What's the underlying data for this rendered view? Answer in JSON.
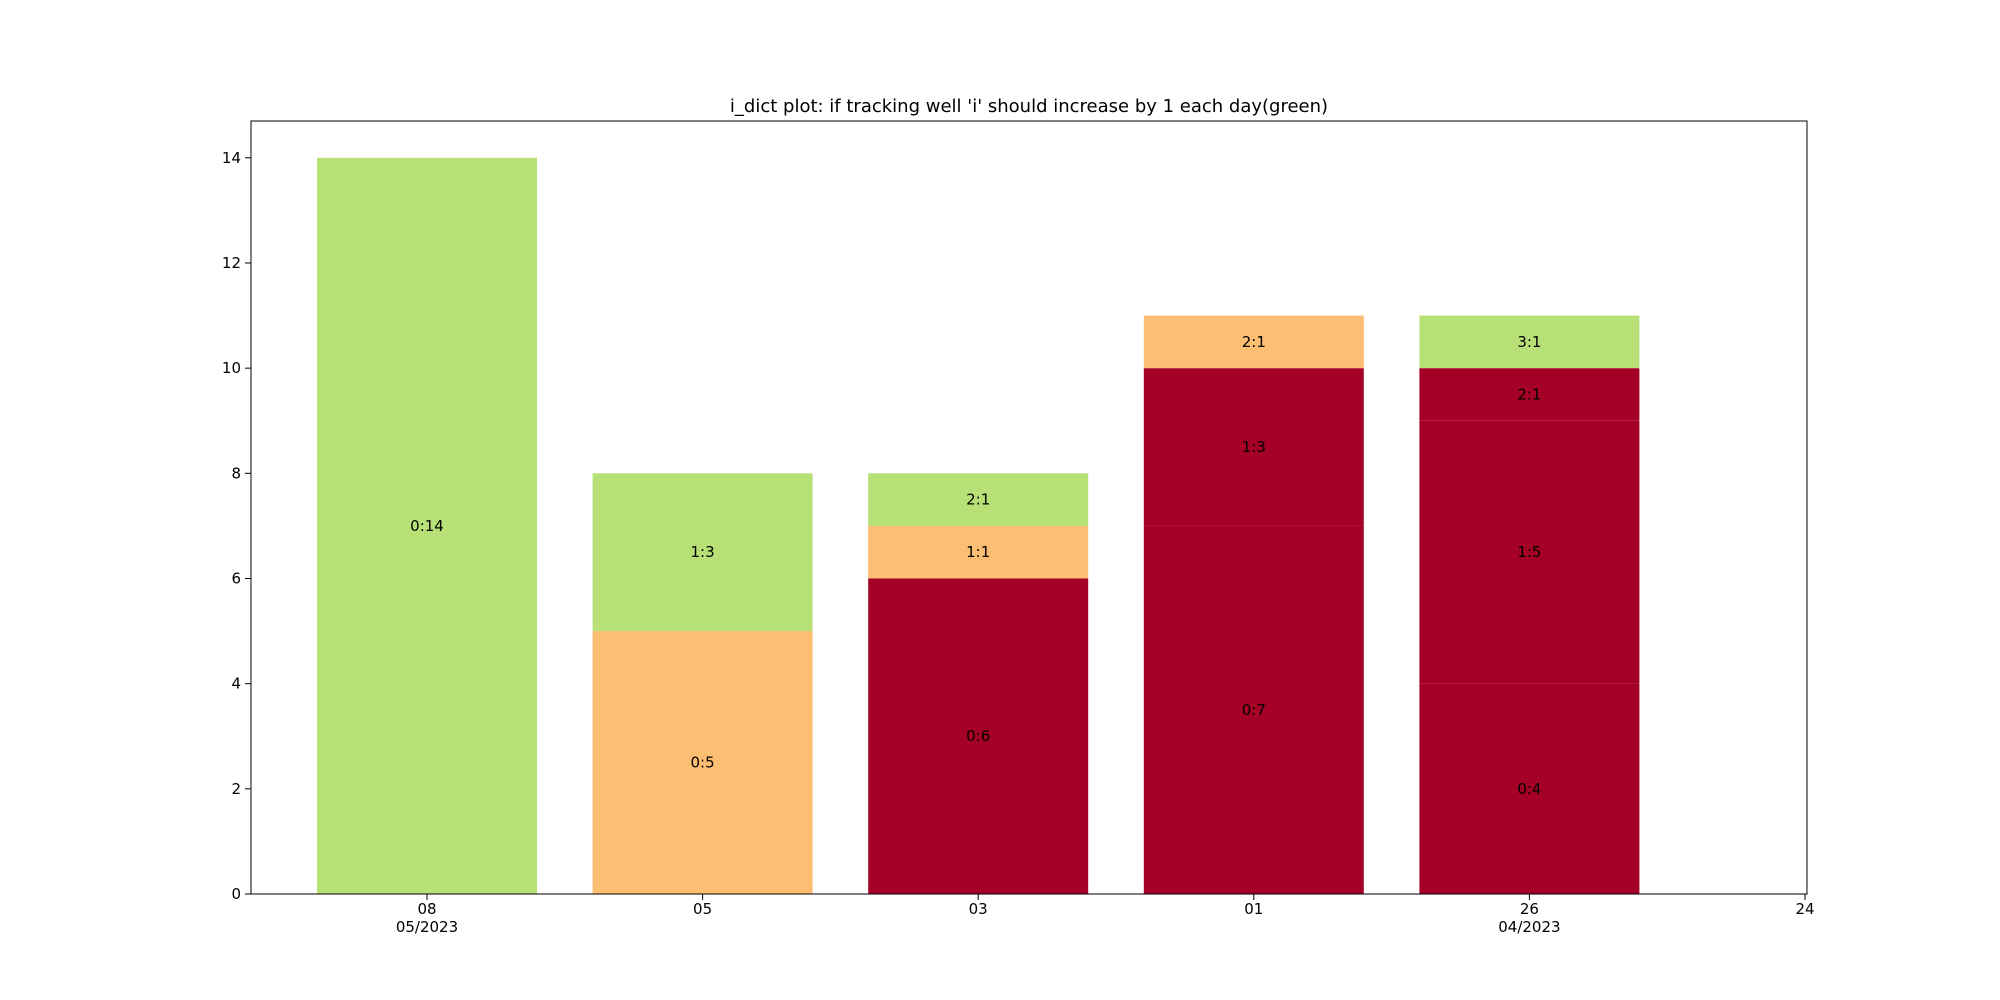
{
  "chart_data": {
    "type": "bar",
    "stacked": true,
    "title": "i_dict plot: if tracking well 'i' should increase by 1 each day(green)",
    "xlabel": "",
    "ylabel": "",
    "ylim": [
      0,
      14.7
    ],
    "yticks": [
      0,
      2,
      4,
      6,
      8,
      10,
      12,
      14
    ],
    "x_axis_ticks": [
      {
        "label": "08",
        "sublabel": "05/2023"
      },
      {
        "label": "05",
        "sublabel": ""
      },
      {
        "label": "03",
        "sublabel": ""
      },
      {
        "label": "01",
        "sublabel": ""
      },
      {
        "label": "26",
        "sublabel": "04/2023"
      },
      {
        "label": "24",
        "sublabel": ""
      }
    ],
    "colors": {
      "green": "#b7e177",
      "orange": "#fcbe72",
      "red": "#a50026"
    },
    "bars": [
      {
        "x": "08",
        "segments": [
          {
            "value": 14,
            "label": "0:14",
            "color": "green"
          }
        ]
      },
      {
        "x": "05",
        "segments": [
          {
            "value": 5,
            "label": "0:5",
            "color": "orange"
          },
          {
            "value": 3,
            "label": "1:3",
            "color": "green"
          }
        ]
      },
      {
        "x": "03",
        "segments": [
          {
            "value": 6,
            "label": "0:6",
            "color": "red"
          },
          {
            "value": 1,
            "label": "1:1",
            "color": "orange"
          },
          {
            "value": 1,
            "label": "2:1",
            "color": "green"
          }
        ]
      },
      {
        "x": "01",
        "segments": [
          {
            "value": 7,
            "label": "0:7",
            "color": "red"
          },
          {
            "value": 3,
            "label": "1:3",
            "color": "red"
          },
          {
            "value": 1,
            "label": "2:1",
            "color": "orange"
          }
        ]
      },
      {
        "x": "26",
        "segments": [
          {
            "value": 4,
            "label": "0:4",
            "color": "red"
          },
          {
            "value": 5,
            "label": "1:5",
            "color": "red"
          },
          {
            "value": 1,
            "label": "2:1",
            "color": "red"
          },
          {
            "value": 1,
            "label": "3:1",
            "color": "green"
          }
        ]
      }
    ]
  }
}
